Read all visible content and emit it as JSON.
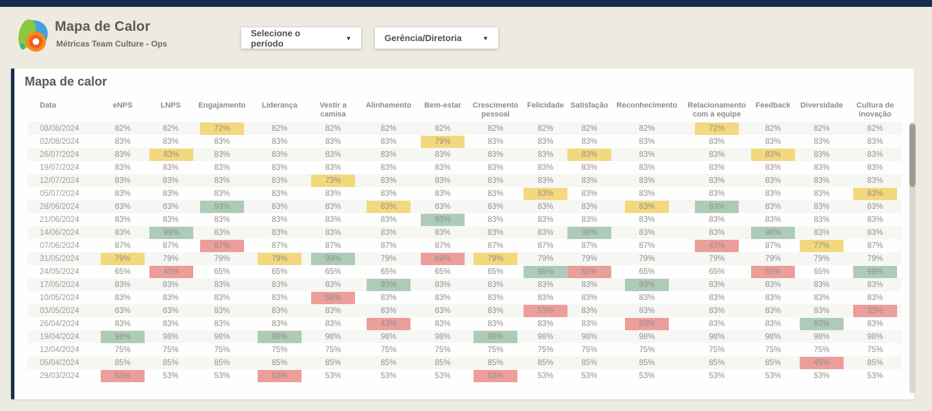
{
  "header": {
    "title": "Mapa de Calor",
    "subtitle": "Métricas Team Culture - Ops",
    "filters": [
      {
        "label": "Selecione o período",
        "icon": "caret-down-icon"
      },
      {
        "label": "Gerência/Diretoria",
        "icon": "caret-down-icon"
      }
    ],
    "caret_glyph": "▼"
  },
  "card": {
    "title": "Mapa de calor",
    "columns": [
      "Data",
      "eNPS",
      "LNPS",
      "Engajamento",
      "Liderança",
      "Vestir a camisa",
      "Alinhamento",
      "Bem-estar",
      "Crescimento pessoal",
      "Felicidade",
      "Satisfação",
      "Reconhecimento",
      "Relacionamento com a equipe",
      "Feedback",
      "Diversidade",
      "Cultura de inovação"
    ],
    "highlight_colors": {
      "y": "#f4d87d",
      "g": "#aecbb8",
      "r": "#ec9e9a"
    },
    "rows": [
      {
        "date": "08/08/2024",
        "cells": [
          "82%",
          "82%",
          "72%|y",
          "82%",
          "82%",
          "82%",
          "82%",
          "82%",
          "82%",
          "82%",
          "82%",
          "72%|y",
          "82%",
          "82%",
          "82%"
        ]
      },
      {
        "date": "02/08/2024",
        "cells": [
          "83%",
          "83%",
          "83%",
          "83%",
          "83%",
          "83%",
          "79%|y",
          "83%",
          "83%",
          "83%",
          "83%",
          "83%",
          "83%",
          "83%",
          "83%"
        ]
      },
      {
        "date": "26/07/2024",
        "cells": [
          "83%",
          "83%|y",
          "83%",
          "83%",
          "83%",
          "83%",
          "83%",
          "83%",
          "83%",
          "83%|y",
          "83%",
          "83%",
          "83%|y",
          "83%",
          "83%"
        ]
      },
      {
        "date": "19/07/2024",
        "cells": [
          "83%",
          "83%",
          "83%",
          "83%",
          "83%",
          "83%",
          "83%",
          "83%",
          "83%",
          "83%",
          "83%",
          "83%",
          "83%",
          "83%",
          "83%"
        ]
      },
      {
        "date": "12/07/2024",
        "cells": [
          "83%",
          "83%",
          "83%",
          "83%",
          "73%|y",
          "83%",
          "83%",
          "83%",
          "83%",
          "83%",
          "83%",
          "83%",
          "83%",
          "83%",
          "83%"
        ]
      },
      {
        "date": "05/07/2024",
        "cells": [
          "83%",
          "83%",
          "83%",
          "83%",
          "83%",
          "83%",
          "83%",
          "83%",
          "83%|y",
          "83%",
          "83%",
          "83%",
          "83%",
          "83%",
          "83%|y"
        ]
      },
      {
        "date": "28/06/2024",
        "cells": [
          "83%",
          "83%",
          "93%|g",
          "83%",
          "83%",
          "83%|y",
          "83%",
          "83%",
          "83%",
          "83%",
          "83%|y",
          "83%|g",
          "83%",
          "83%",
          "83%"
        ]
      },
      {
        "date": "21/06/2024",
        "cells": [
          "83%",
          "83%",
          "83%",
          "83%",
          "83%",
          "83%",
          "93%|g",
          "83%",
          "83%",
          "83%",
          "83%",
          "83%",
          "83%",
          "83%",
          "83%"
        ]
      },
      {
        "date": "14/06/2024",
        "cells": [
          "83%",
          "99%|g",
          "83%",
          "83%",
          "83%",
          "83%",
          "83%",
          "83%",
          "83%",
          "98%|g",
          "83%",
          "83%",
          "96%|g",
          "83%",
          "83%"
        ]
      },
      {
        "date": "07/06/2024",
        "cells": [
          "87%",
          "87%",
          "67%|r",
          "87%",
          "87%",
          "87%",
          "87%",
          "87%",
          "87%",
          "87%",
          "87%",
          "47%|r",
          "87%",
          "77%|y",
          "87%"
        ]
      },
      {
        "date": "31/05/2024",
        "cells": [
          "79%|y",
          "79%",
          "79%",
          "79%|y",
          "99%|g",
          "79%",
          "69%|r",
          "79%|y",
          "79%",
          "79%",
          "79%",
          "79%",
          "79%",
          "79%",
          "79%"
        ]
      },
      {
        "date": "24/05/2024",
        "cells": [
          "65%",
          "45%|r",
          "65%",
          "65%",
          "65%",
          "65%",
          "65%",
          "65%",
          "95%|g",
          "65%|r",
          "65%",
          "65%",
          "65%|r",
          "65%",
          "99%|g"
        ]
      },
      {
        "date": "17/05/2024",
        "cells": [
          "83%",
          "83%",
          "83%",
          "83%",
          "83%",
          "93%|g",
          "83%",
          "83%",
          "83%",
          "83%",
          "93%|g",
          "83%",
          "83%",
          "83%",
          "83%"
        ]
      },
      {
        "date": "10/05/2024",
        "cells": [
          "83%",
          "83%",
          "83%",
          "83%",
          "58%|r",
          "83%",
          "83%",
          "83%",
          "83%",
          "83%",
          "83%",
          "83%",
          "83%",
          "83%",
          "83%"
        ]
      },
      {
        "date": "03/05/2024",
        "cells": [
          "83%",
          "83%",
          "83%",
          "83%",
          "83%",
          "83%",
          "83%",
          "83%",
          "53%|r",
          "83%",
          "83%",
          "83%",
          "83%",
          "83%",
          "33%|r"
        ]
      },
      {
        "date": "26/04/2024",
        "cells": [
          "83%",
          "83%",
          "83%",
          "83%",
          "83%",
          "43%|r",
          "83%",
          "83%",
          "83%",
          "83%",
          "53%|r",
          "83%",
          "83%",
          "93%|g",
          "83%"
        ]
      },
      {
        "date": "19/04/2024",
        "cells": [
          "98%|g",
          "98%",
          "98%",
          "98%|g",
          "98%",
          "98%",
          "98%",
          "98%|g",
          "98%",
          "98%",
          "98%",
          "98%",
          "98%",
          "98%",
          "98%"
        ]
      },
      {
        "date": "12/04/2024",
        "cells": [
          "75%",
          "75%",
          "75%",
          "75%",
          "75%",
          "75%",
          "75%",
          "75%",
          "75%",
          "75%",
          "75%",
          "75%",
          "75%",
          "75%",
          "75%"
        ]
      },
      {
        "date": "05/04/2024",
        "cells": [
          "85%",
          "85%",
          "85%",
          "85%",
          "85%",
          "85%",
          "85%",
          "85%",
          "85%",
          "85%",
          "85%",
          "85%",
          "85%",
          "45%|r",
          "85%"
        ]
      },
      {
        "date": "29/03/2024",
        "cells": [
          "53%|r",
          "53%",
          "53%",
          "53%|r",
          "53%",
          "53%",
          "53%",
          "53%|r",
          "53%",
          "53%",
          "53%",
          "53%",
          "53%",
          "53%",
          "53%"
        ]
      }
    ]
  }
}
